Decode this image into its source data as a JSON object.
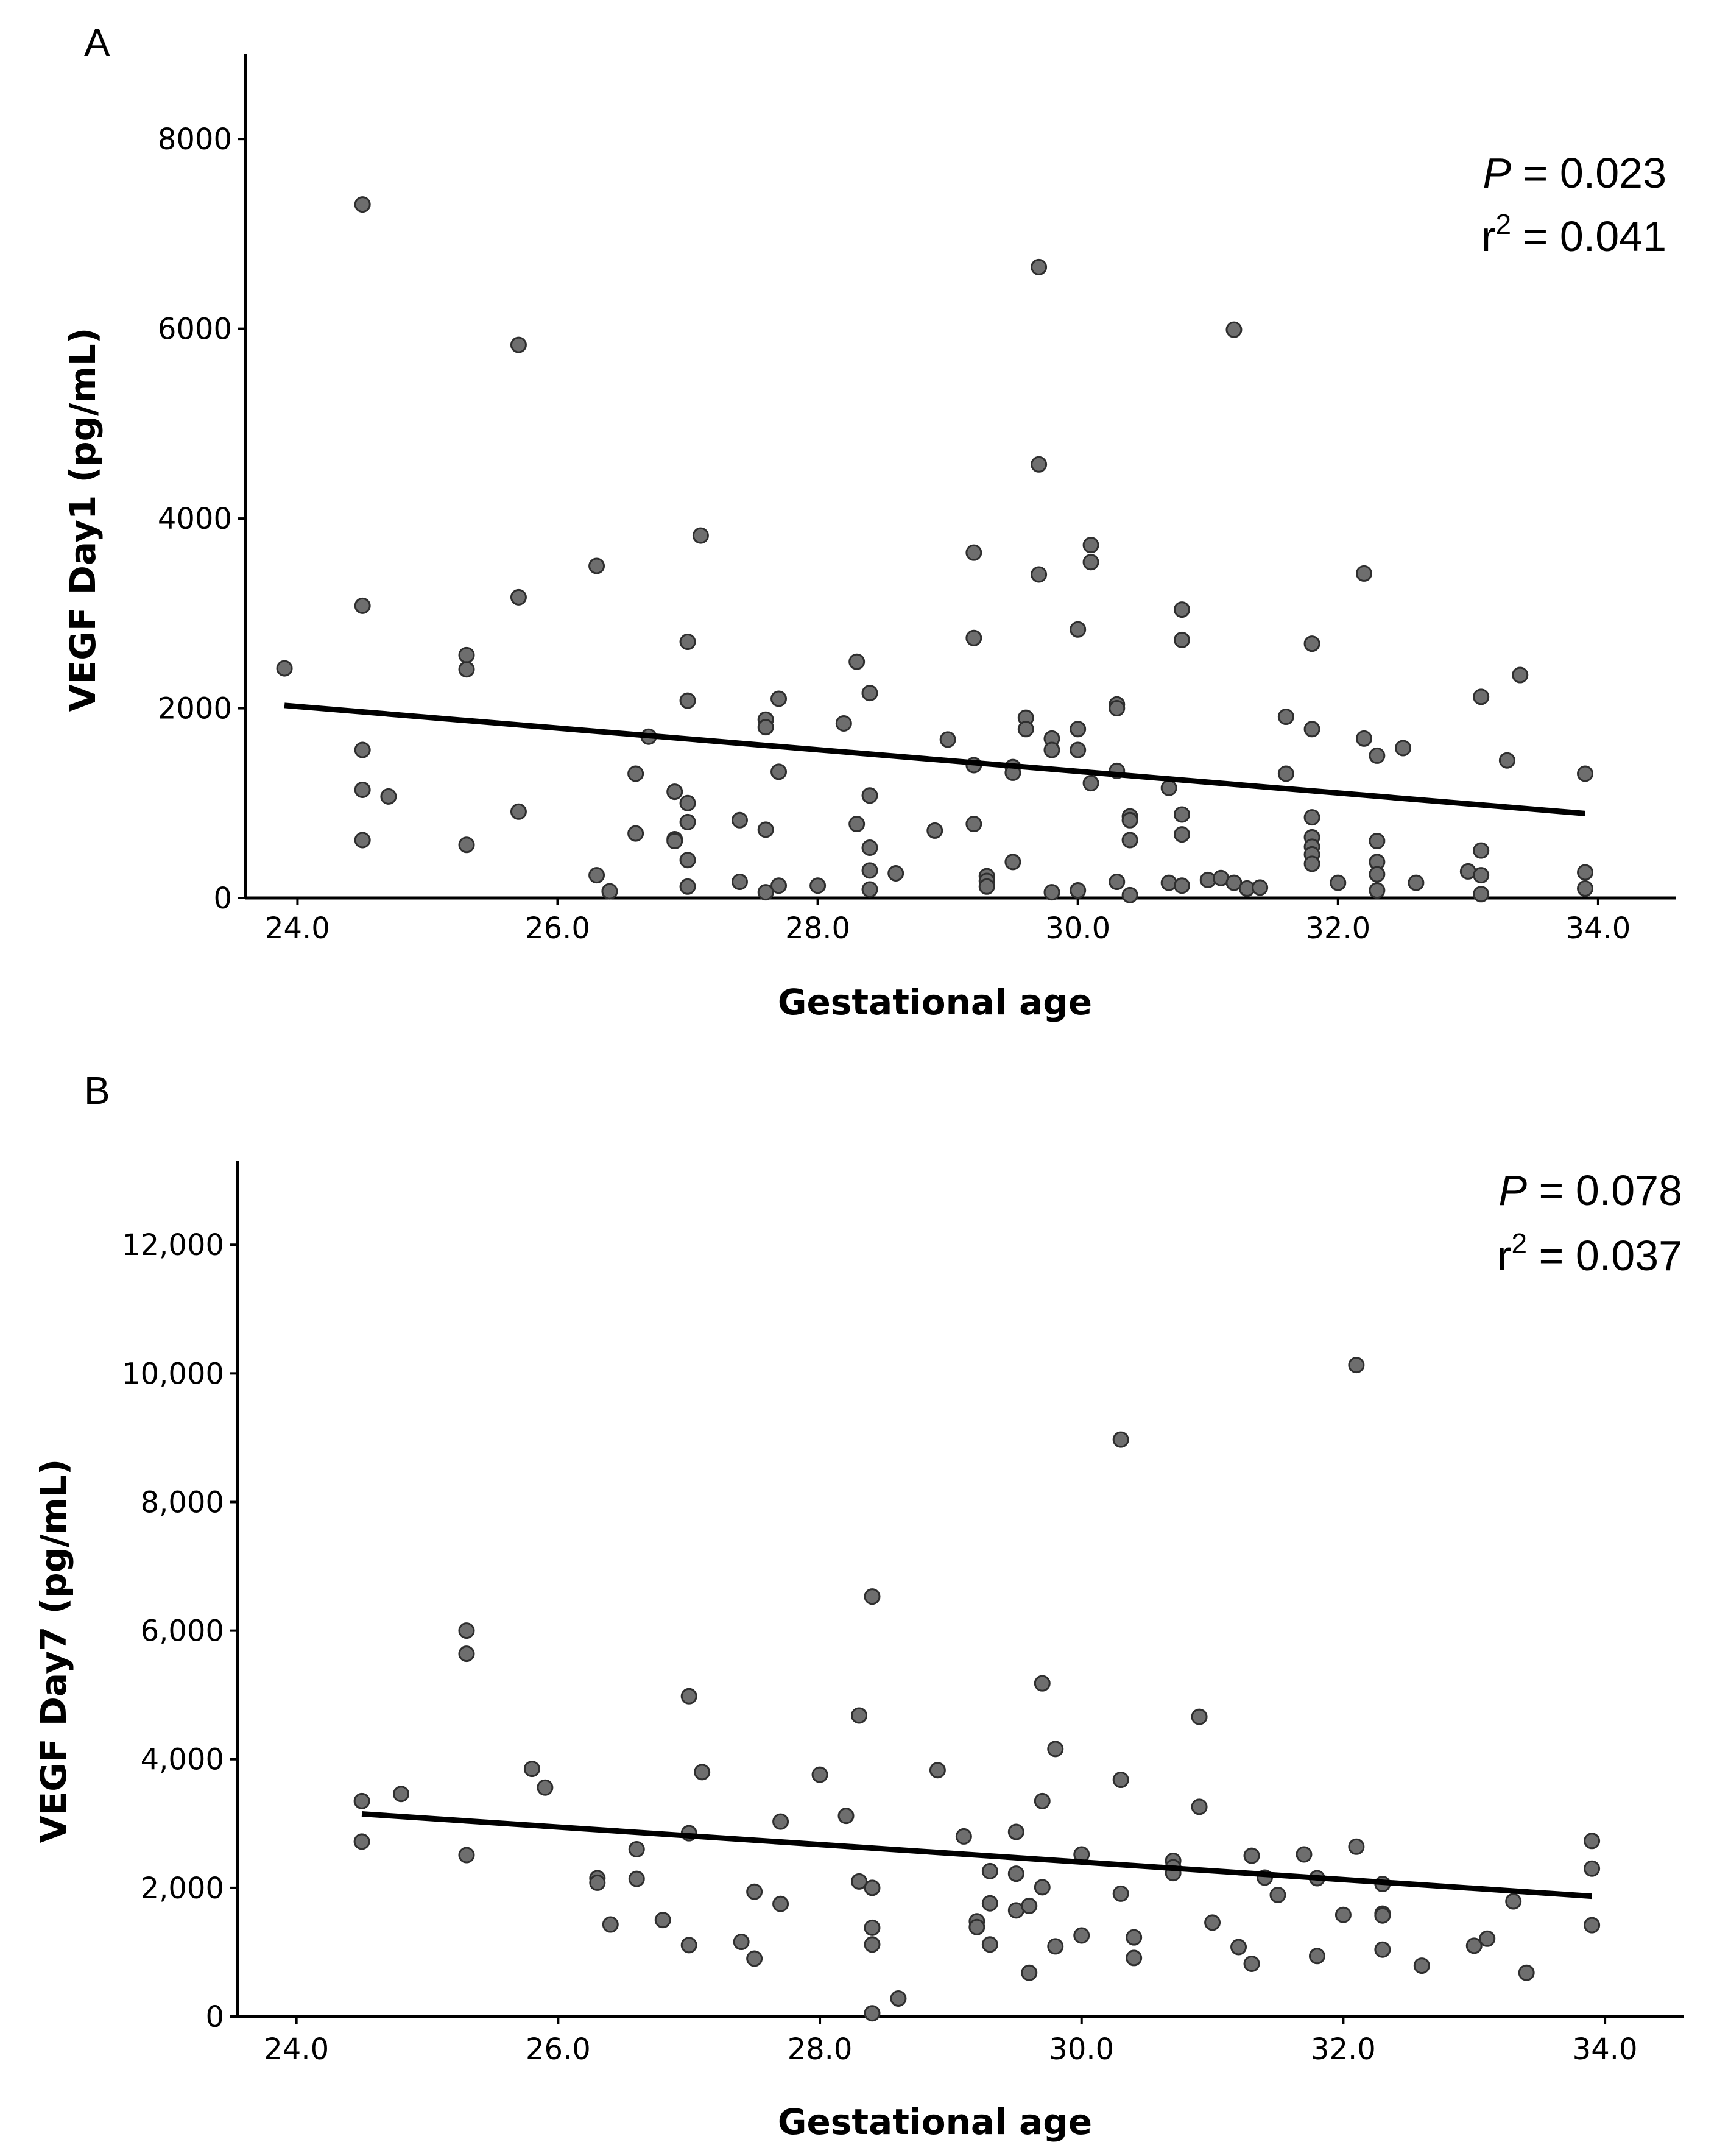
{
  "chart_data": [
    {
      "type": "scatter",
      "panel": "A",
      "xlabel": "Gestational age",
      "ylabel": "VEGF Day1 (pg/mL)",
      "xlim": [
        23.6,
        34.6
      ],
      "ylim": [
        0,
        8900
      ],
      "x_ticks": [
        24,
        26,
        28,
        30,
        32,
        34
      ],
      "x_tick_labels": [
        "24.0",
        "26.0",
        "28.0",
        "30.0",
        "32.0",
        "34.0"
      ],
      "y_ticks": [
        0,
        2000,
        4000,
        6000,
        8000
      ],
      "y_tick_labels": [
        "0",
        "2000",
        "4000",
        "6000",
        "8000"
      ],
      "p_label": "P",
      "p_text": " = 0.023",
      "r2_label": "r",
      "r2_sup": "2",
      "r2_text": " = 0.041",
      "regression": {
        "x": [
          23.9,
          33.9
        ],
        "y": [
          2030,
          890
        ]
      },
      "points": [
        {
          "x": 23.9,
          "y": 2420
        },
        {
          "x": 24.5,
          "y": 7310
        },
        {
          "x": 24.5,
          "y": 3080
        },
        {
          "x": 24.5,
          "y": 1560
        },
        {
          "x": 24.5,
          "y": 1140
        },
        {
          "x": 24.5,
          "y": 610
        },
        {
          "x": 24.7,
          "y": 1070
        },
        {
          "x": 25.3,
          "y": 2560
        },
        {
          "x": 25.3,
          "y": 2410
        },
        {
          "x": 25.3,
          "y": 560
        },
        {
          "x": 25.7,
          "y": 5830
        },
        {
          "x": 25.7,
          "y": 3170
        },
        {
          "x": 25.7,
          "y": 910
        },
        {
          "x": 26.3,
          "y": 3500
        },
        {
          "x": 26.3,
          "y": 240
        },
        {
          "x": 26.4,
          "y": 70
        },
        {
          "x": 26.6,
          "y": 1310
        },
        {
          "x": 26.6,
          "y": 680
        },
        {
          "x": 26.7,
          "y": 1700
        },
        {
          "x": 26.9,
          "y": 1120
        },
        {
          "x": 26.9,
          "y": 620
        },
        {
          "x": 26.9,
          "y": 600
        },
        {
          "x": 27.0,
          "y": 2700
        },
        {
          "x": 27.0,
          "y": 2080
        },
        {
          "x": 27.0,
          "y": 1000
        },
        {
          "x": 27.0,
          "y": 800
        },
        {
          "x": 27.0,
          "y": 400
        },
        {
          "x": 27.0,
          "y": 120
        },
        {
          "x": 27.1,
          "y": 3820
        },
        {
          "x": 27.4,
          "y": 820
        },
        {
          "x": 27.4,
          "y": 170
        },
        {
          "x": 27.6,
          "y": 1880
        },
        {
          "x": 27.6,
          "y": 1800
        },
        {
          "x": 27.6,
          "y": 720
        },
        {
          "x": 27.6,
          "y": 60
        },
        {
          "x": 27.7,
          "y": 2100
        },
        {
          "x": 27.7,
          "y": 1330
        },
        {
          "x": 27.7,
          "y": 130
        },
        {
          "x": 28.0,
          "y": 130
        },
        {
          "x": 28.2,
          "y": 1840
        },
        {
          "x": 28.3,
          "y": 2490
        },
        {
          "x": 28.3,
          "y": 780
        },
        {
          "x": 28.4,
          "y": 2160
        },
        {
          "x": 28.4,
          "y": 1080
        },
        {
          "x": 28.4,
          "y": 530
        },
        {
          "x": 28.4,
          "y": 290
        },
        {
          "x": 28.4,
          "y": 90
        },
        {
          "x": 28.6,
          "y": 260
        },
        {
          "x": 28.9,
          "y": 710
        },
        {
          "x": 29.0,
          "y": 1670
        },
        {
          "x": 29.2,
          "y": 3640
        },
        {
          "x": 29.2,
          "y": 2740
        },
        {
          "x": 29.2,
          "y": 1400
        },
        {
          "x": 29.2,
          "y": 780
        },
        {
          "x": 29.3,
          "y": 230
        },
        {
          "x": 29.3,
          "y": 180
        },
        {
          "x": 29.3,
          "y": 120
        },
        {
          "x": 29.5,
          "y": 1380
        },
        {
          "x": 29.5,
          "y": 1320
        },
        {
          "x": 29.5,
          "y": 380
        },
        {
          "x": 29.6,
          "y": 1900
        },
        {
          "x": 29.6,
          "y": 1780
        },
        {
          "x": 29.7,
          "y": 6650
        },
        {
          "x": 29.7,
          "y": 4570
        },
        {
          "x": 29.7,
          "y": 3410
        },
        {
          "x": 29.8,
          "y": 1680
        },
        {
          "x": 29.8,
          "y": 1560
        },
        {
          "x": 29.8,
          "y": 60
        },
        {
          "x": 30.0,
          "y": 2830
        },
        {
          "x": 30.0,
          "y": 1780
        },
        {
          "x": 30.0,
          "y": 1560
        },
        {
          "x": 30.0,
          "y": 80
        },
        {
          "x": 30.1,
          "y": 3720
        },
        {
          "x": 30.1,
          "y": 3540
        },
        {
          "x": 30.1,
          "y": 1210
        },
        {
          "x": 30.3,
          "y": 2040
        },
        {
          "x": 30.3,
          "y": 2000
        },
        {
          "x": 30.3,
          "y": 1340
        },
        {
          "x": 30.3,
          "y": 170
        },
        {
          "x": 30.4,
          "y": 860
        },
        {
          "x": 30.4,
          "y": 820
        },
        {
          "x": 30.4,
          "y": 610
        },
        {
          "x": 30.4,
          "y": 30
        },
        {
          "x": 30.7,
          "y": 1160
        },
        {
          "x": 30.7,
          "y": 160
        },
        {
          "x": 30.8,
          "y": 3040
        },
        {
          "x": 30.8,
          "y": 2720
        },
        {
          "x": 30.8,
          "y": 880
        },
        {
          "x": 30.8,
          "y": 670
        },
        {
          "x": 30.8,
          "y": 130
        },
        {
          "x": 31.0,
          "y": 190
        },
        {
          "x": 31.1,
          "y": 210
        },
        {
          "x": 31.2,
          "y": 5990
        },
        {
          "x": 31.2,
          "y": 160
        },
        {
          "x": 31.3,
          "y": 100
        },
        {
          "x": 31.4,
          "y": 110
        },
        {
          "x": 31.6,
          "y": 1310
        },
        {
          "x": 31.6,
          "y": 1910
        },
        {
          "x": 31.8,
          "y": 1780
        },
        {
          "x": 31.8,
          "y": 2680
        },
        {
          "x": 31.8,
          "y": 850
        },
        {
          "x": 31.8,
          "y": 640
        },
        {
          "x": 31.8,
          "y": 540
        },
        {
          "x": 31.8,
          "y": 460
        },
        {
          "x": 31.8,
          "y": 360
        },
        {
          "x": 32.0,
          "y": 160
        },
        {
          "x": 32.2,
          "y": 3420
        },
        {
          "x": 32.2,
          "y": 1680
        },
        {
          "x": 32.3,
          "y": 1500
        },
        {
          "x": 32.3,
          "y": 600
        },
        {
          "x": 32.3,
          "y": 380
        },
        {
          "x": 32.3,
          "y": 250
        },
        {
          "x": 32.3,
          "y": 80
        },
        {
          "x": 32.5,
          "y": 1580
        },
        {
          "x": 32.6,
          "y": 160
        },
        {
          "x": 33.0,
          "y": 280
        },
        {
          "x": 33.1,
          "y": 2120
        },
        {
          "x": 33.1,
          "y": 500
        },
        {
          "x": 33.1,
          "y": 240
        },
        {
          "x": 33.1,
          "y": 40
        },
        {
          "x": 33.3,
          "y": 1450
        },
        {
          "x": 33.4,
          "y": 2350
        },
        {
          "x": 33.9,
          "y": 1310
        },
        {
          "x": 33.9,
          "y": 270
        },
        {
          "x": 33.9,
          "y": 100
        }
      ]
    },
    {
      "type": "scatter",
      "panel": "B",
      "xlabel": "Gestational age",
      "ylabel": "VEGF Day7 (pg/mL)",
      "xlim": [
        23.55,
        34.6
      ],
      "ylim": [
        0,
        13300
      ],
      "x_ticks": [
        24,
        26,
        28,
        30,
        32,
        34
      ],
      "x_tick_labels": [
        "24.0",
        "26.0",
        "28.0",
        "30.0",
        "32.0",
        "34.0"
      ],
      "y_ticks": [
        0,
        2000,
        4000,
        6000,
        8000,
        10000,
        12000
      ],
      "y_tick_labels": [
        "0",
        "2,000",
        "4,000",
        "6,000",
        "8,000",
        "10,000",
        "12,000"
      ],
      "p_label": "P",
      "p_text": " = 0.078",
      "r2_label": "r",
      "r2_sup": "2",
      "r2_text": " = 0.037",
      "regression": {
        "x": [
          24.5,
          33.9
        ],
        "y": [
          3150,
          1870
        ]
      },
      "points": [
        {
          "x": 24.5,
          "y": 3350
        },
        {
          "x": 24.5,
          "y": 2720
        },
        {
          "x": 24.8,
          "y": 3460
        },
        {
          "x": 25.3,
          "y": 6000
        },
        {
          "x": 25.3,
          "y": 5640
        },
        {
          "x": 25.3,
          "y": 2510
        },
        {
          "x": 25.8,
          "y": 3850
        },
        {
          "x": 25.9,
          "y": 3560
        },
        {
          "x": 26.3,
          "y": 2150
        },
        {
          "x": 26.3,
          "y": 2080
        },
        {
          "x": 26.4,
          "y": 1430
        },
        {
          "x": 26.6,
          "y": 2600
        },
        {
          "x": 26.6,
          "y": 2140
        },
        {
          "x": 26.8,
          "y": 1500
        },
        {
          "x": 27.0,
          "y": 4980
        },
        {
          "x": 27.0,
          "y": 2850
        },
        {
          "x": 27.0,
          "y": 1110
        },
        {
          "x": 27.1,
          "y": 3800
        },
        {
          "x": 27.4,
          "y": 1160
        },
        {
          "x": 27.5,
          "y": 1940
        },
        {
          "x": 27.5,
          "y": 900
        },
        {
          "x": 27.7,
          "y": 3030
        },
        {
          "x": 27.7,
          "y": 1750
        },
        {
          "x": 28.0,
          "y": 3760
        },
        {
          "x": 28.2,
          "y": 3120
        },
        {
          "x": 28.3,
          "y": 4680
        },
        {
          "x": 28.3,
          "y": 2100
        },
        {
          "x": 28.4,
          "y": 6530
        },
        {
          "x": 28.4,
          "y": 2000
        },
        {
          "x": 28.4,
          "y": 1380
        },
        {
          "x": 28.4,
          "y": 1120
        },
        {
          "x": 28.4,
          "y": 50
        },
        {
          "x": 28.6,
          "y": 280
        },
        {
          "x": 28.9,
          "y": 3830
        },
        {
          "x": 29.1,
          "y": 2800
        },
        {
          "x": 29.2,
          "y": 1480
        },
        {
          "x": 29.2,
          "y": 1390
        },
        {
          "x": 29.3,
          "y": 2260
        },
        {
          "x": 29.3,
          "y": 1760
        },
        {
          "x": 29.3,
          "y": 1120
        },
        {
          "x": 29.5,
          "y": 2870
        },
        {
          "x": 29.5,
          "y": 2220
        },
        {
          "x": 29.5,
          "y": 1650
        },
        {
          "x": 29.6,
          "y": 1720
        },
        {
          "x": 29.6,
          "y": 680
        },
        {
          "x": 29.7,
          "y": 5180
        },
        {
          "x": 29.7,
          "y": 3350
        },
        {
          "x": 29.7,
          "y": 2010
        },
        {
          "x": 29.8,
          "y": 4160
        },
        {
          "x": 29.8,
          "y": 1090
        },
        {
          "x": 30.0,
          "y": 2520
        },
        {
          "x": 30.0,
          "y": 1260
        },
        {
          "x": 30.3,
          "y": 8970
        },
        {
          "x": 30.3,
          "y": 3680
        },
        {
          "x": 30.3,
          "y": 1910
        },
        {
          "x": 30.4,
          "y": 1230
        },
        {
          "x": 30.4,
          "y": 910
        },
        {
          "x": 30.7,
          "y": 2420
        },
        {
          "x": 30.7,
          "y": 2320
        },
        {
          "x": 30.7,
          "y": 2230
        },
        {
          "x": 30.9,
          "y": 4660
        },
        {
          "x": 30.9,
          "y": 3260
        },
        {
          "x": 31.0,
          "y": 1460
        },
        {
          "x": 31.2,
          "y": 1080
        },
        {
          "x": 31.3,
          "y": 2500
        },
        {
          "x": 31.3,
          "y": 820
        },
        {
          "x": 31.4,
          "y": 2160
        },
        {
          "x": 31.5,
          "y": 1890
        },
        {
          "x": 31.7,
          "y": 2520
        },
        {
          "x": 31.8,
          "y": 2150
        },
        {
          "x": 31.8,
          "y": 940
        },
        {
          "x": 32.0,
          "y": 1580
        },
        {
          "x": 32.1,
          "y": 10130
        },
        {
          "x": 32.1,
          "y": 2640
        },
        {
          "x": 32.3,
          "y": 2060
        },
        {
          "x": 32.3,
          "y": 1600
        },
        {
          "x": 32.3,
          "y": 1570
        },
        {
          "x": 32.3,
          "y": 1040
        },
        {
          "x": 32.6,
          "y": 790
        },
        {
          "x": 33.0,
          "y": 1100
        },
        {
          "x": 33.1,
          "y": 1210
        },
        {
          "x": 33.3,
          "y": 1790
        },
        {
          "x": 33.4,
          "y": 680
        },
        {
          "x": 33.9,
          "y": 2730
        },
        {
          "x": 33.9,
          "y": 2300
        },
        {
          "x": 33.9,
          "y": 1420
        }
      ]
    }
  ]
}
